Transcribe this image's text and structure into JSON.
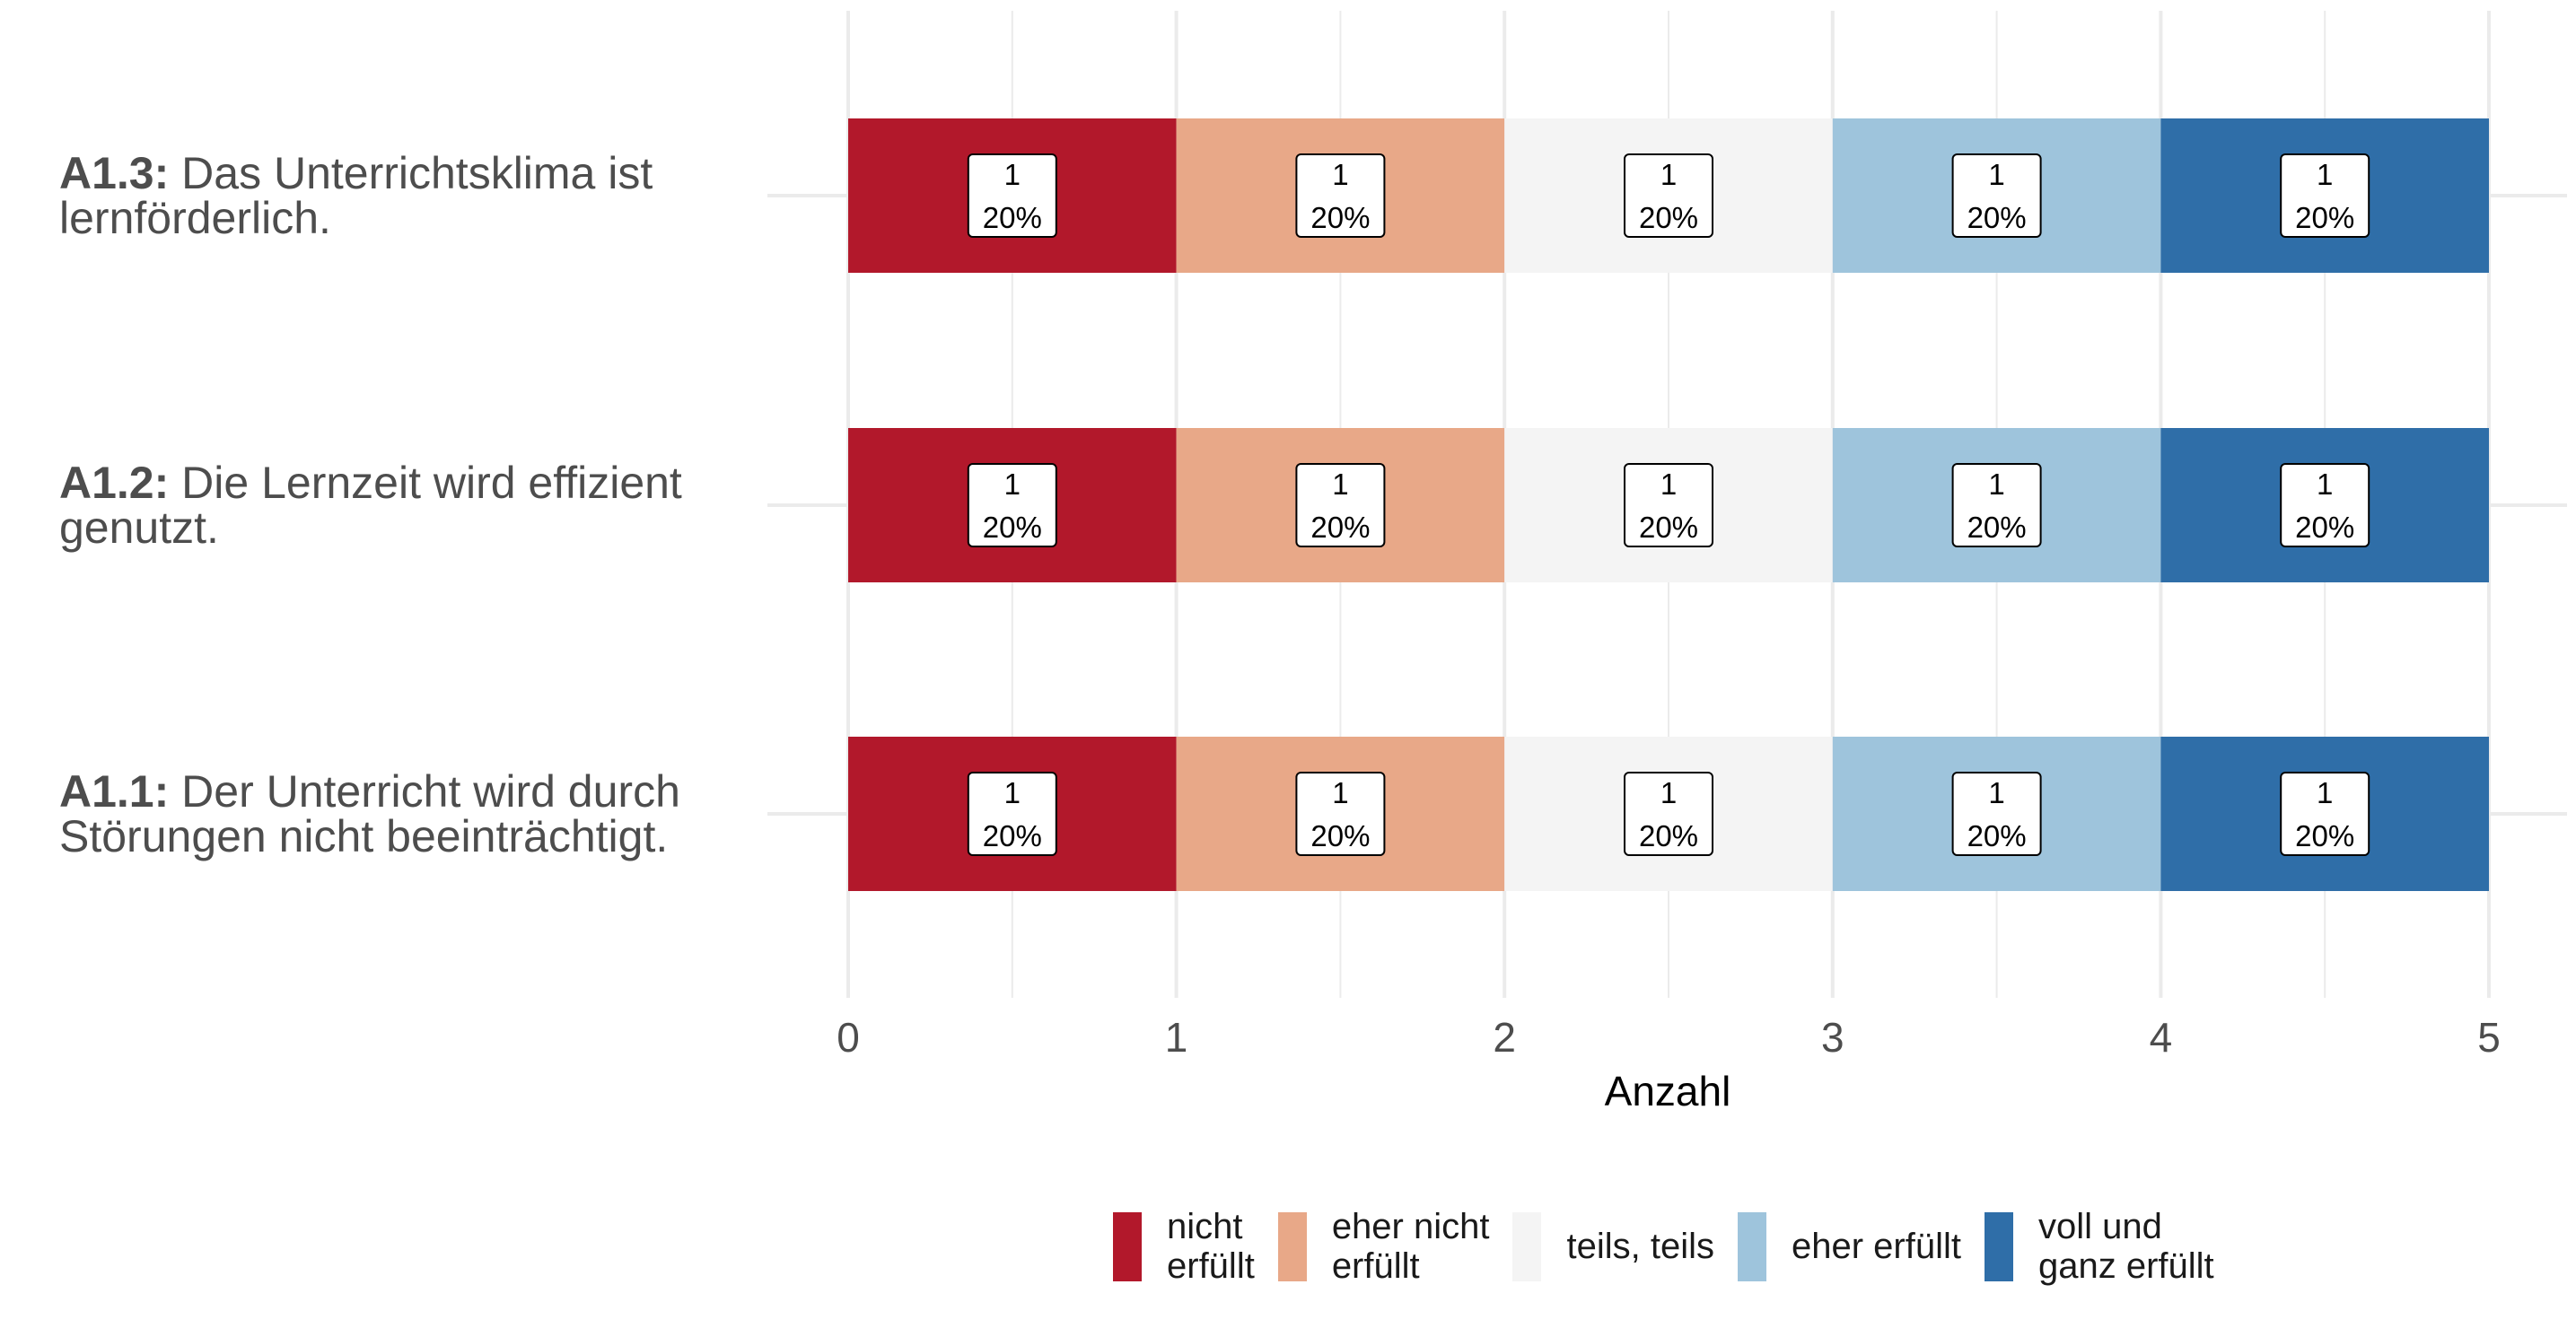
{
  "chart_data": {
    "type": "bar",
    "orientation": "horizontal",
    "stacked": true,
    "xlabel": "Anzahl",
    "xlim": [
      0,
      5
    ],
    "x_ticks": [
      "0",
      "1",
      "2",
      "3",
      "4",
      "5"
    ],
    "grid": true,
    "legend_position": "bottom",
    "categories": [
      {
        "code": "A1.3:",
        "text": "Das Unterrichtsklima ist\nlernförderlich."
      },
      {
        "code": "A1.2:",
        "text": "Die Lernzeit wird effizient\ngenutzt."
      },
      {
        "code": "A1.1:",
        "text": "Der Unterricht wird durch\nStörungen nicht beeinträchtigt."
      }
    ],
    "series": [
      {
        "name": "nicht\nerfüllt",
        "color": "#b2182b",
        "values": [
          1,
          1,
          1
        ],
        "labels": [
          "1\n20%",
          "1\n20%",
          "1\n20%"
        ]
      },
      {
        "name": "eher nicht\nerfüllt",
        "color": "#e8a888",
        "values": [
          1,
          1,
          1
        ],
        "labels": [
          "1\n20%",
          "1\n20%",
          "1\n20%"
        ]
      },
      {
        "name": "teils, teils",
        "color": "#f4f4f4",
        "values": [
          1,
          1,
          1
        ],
        "labels": [
          "1\n20%",
          "1\n20%",
          "1\n20%"
        ]
      },
      {
        "name": "eher erfüllt",
        "color": "#9ec4dc",
        "values": [
          1,
          1,
          1
        ],
        "labels": [
          "1\n20%",
          "1\n20%",
          "1\n20%"
        ]
      },
      {
        "name": "voll und\nganz erfüllt",
        "color": "#2f6ea8",
        "values": [
          1,
          1,
          1
        ],
        "labels": [
          "1\n20%",
          "1\n20%",
          "1\n20%"
        ]
      }
    ]
  }
}
